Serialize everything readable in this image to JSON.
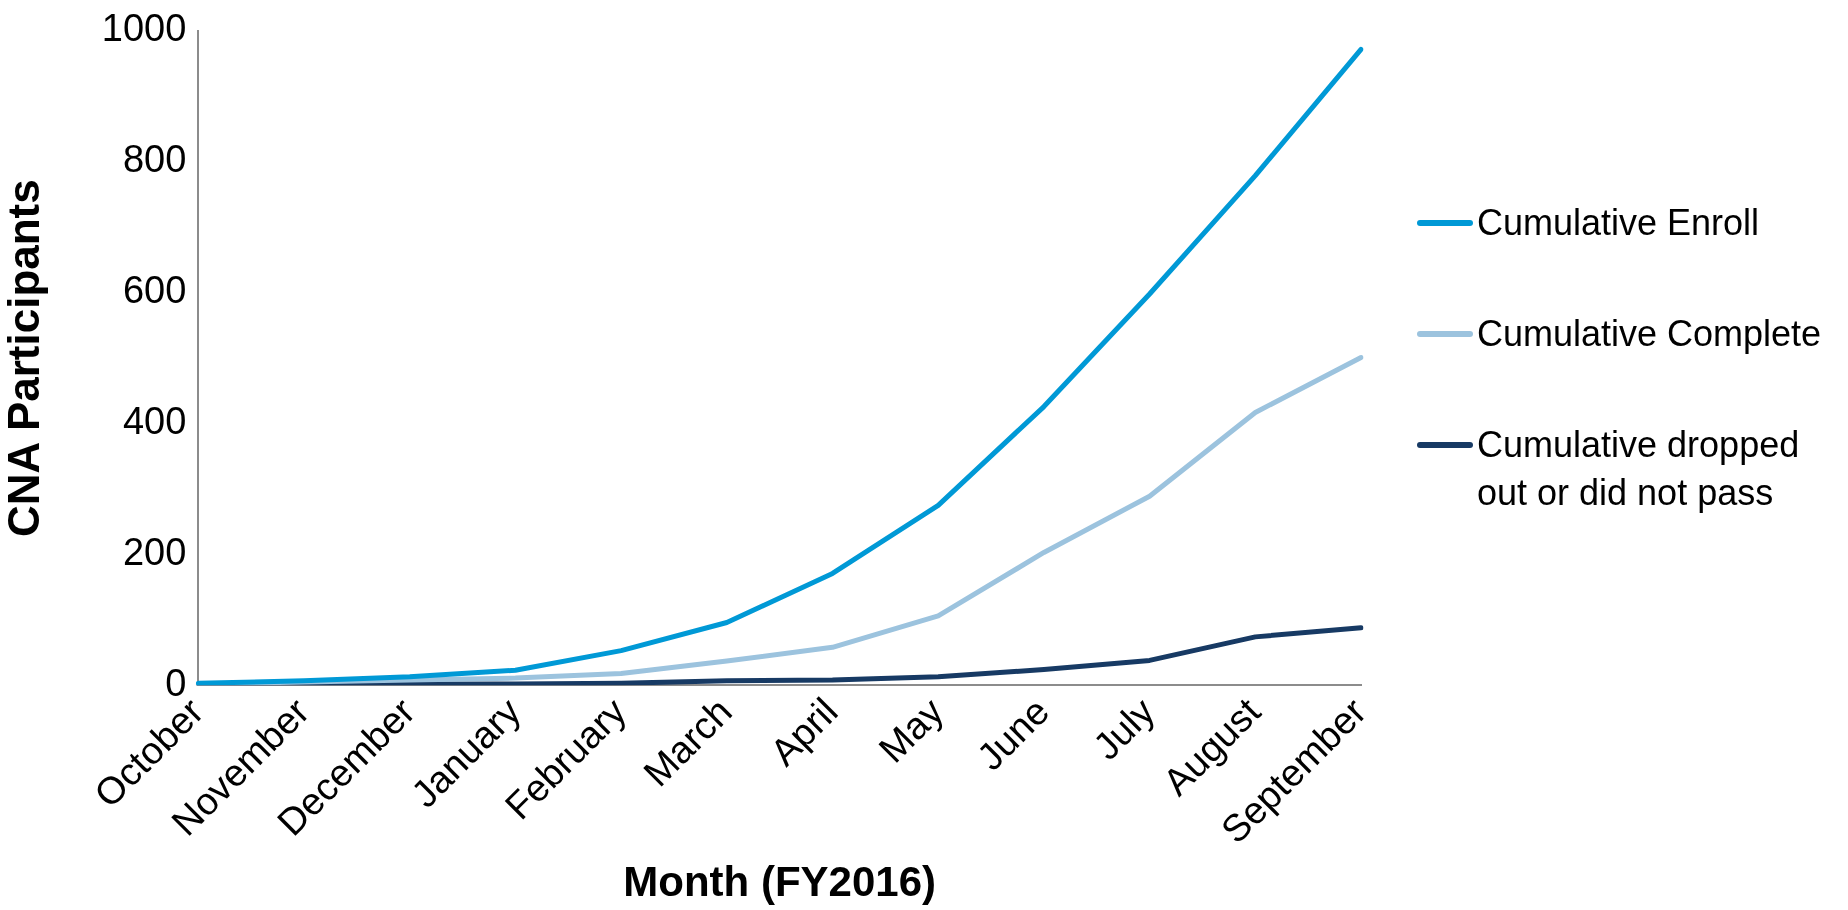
{
  "chart_data": {
    "type": "line",
    "xlabel": "Month (FY2016)",
    "ylabel": "CNA Participants",
    "categories": [
      "October",
      "November",
      "December",
      "January",
      "February",
      "March",
      "April",
      "May",
      "June",
      "July",
      "August",
      "September"
    ],
    "series": [
      {
        "name": "Cumulative Enroll",
        "color": "#0099d6",
        "values": [
          3,
          7,
          13,
          23,
          53,
          96,
          171,
          275,
          426,
          598,
          779,
          972
        ]
      },
      {
        "name": "Cumulative Complete",
        "color": "#9cc3de",
        "values": [
          2,
          5,
          8,
          11,
          18,
          37,
          58,
          106,
          203,
          289,
          417,
          501
        ]
      },
      {
        "name": "Cumulative dropped out or did not pass",
        "color": "#173a64",
        "values": [
          0,
          0,
          2,
          2,
          3,
          7,
          8,
          13,
          24,
          38,
          74,
          88
        ]
      }
    ],
    "ylim": [
      0,
      1000
    ],
    "yticks": [
      0,
      200,
      400,
      600,
      800,
      1000
    ],
    "grid": false,
    "legend": "right",
    "marker": "none",
    "line_style": "solid"
  }
}
